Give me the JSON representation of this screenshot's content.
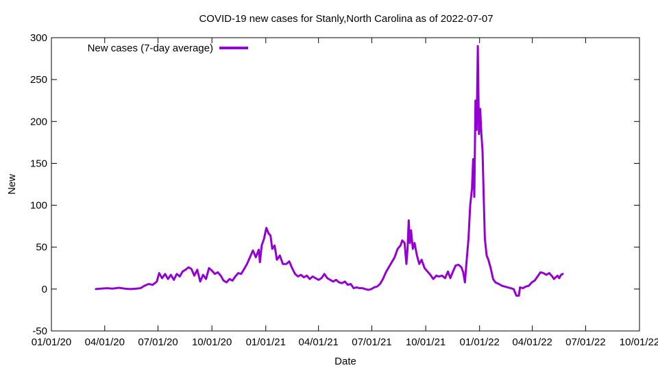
{
  "chart_data": {
    "type": "line",
    "title": "COVID-19 new cases for Stanly,North Carolina as of 2022-07-07",
    "xlabel": "Date",
    "ylabel": "New",
    "xlim": [
      "2020-01-01",
      "2022-10-01"
    ],
    "ylim": [
      -50,
      300
    ],
    "x_ticks": [
      {
        "date": "2020-01-01",
        "label": "01/01/20"
      },
      {
        "date": "2020-04-01",
        "label": "04/01/20"
      },
      {
        "date": "2020-07-01",
        "label": "07/01/20"
      },
      {
        "date": "2020-10-01",
        "label": "10/01/20"
      },
      {
        "date": "2021-01-01",
        "label": "01/01/21"
      },
      {
        "date": "2021-04-01",
        "label": "04/01/21"
      },
      {
        "date": "2021-07-01",
        "label": "07/01/21"
      },
      {
        "date": "2021-10-01",
        "label": "10/01/21"
      },
      {
        "date": "2022-01-01",
        "label": "01/01/22"
      },
      {
        "date": "2022-04-01",
        "label": "04/01/22"
      },
      {
        "date": "2022-07-01",
        "label": "07/01/22"
      },
      {
        "date": "2022-10-01",
        "label": "10/01/22"
      }
    ],
    "y_ticks": [
      -50,
      0,
      50,
      100,
      150,
      200,
      250,
      300
    ],
    "grid": false,
    "legend_position": "top-left",
    "series": [
      {
        "name": "New cases (7-day average)",
        "color": "#9400d3",
        "points": [
          [
            "2020-03-17",
            0
          ],
          [
            "2020-03-25",
            0.5
          ],
          [
            "2020-04-05",
            1
          ],
          [
            "2020-04-15",
            0.5
          ],
          [
            "2020-04-25",
            1.5
          ],
          [
            "2020-05-05",
            0.5
          ],
          [
            "2020-05-15",
            0
          ],
          [
            "2020-05-25",
            0.5
          ],
          [
            "2020-06-01",
            1
          ],
          [
            "2020-06-08",
            4
          ],
          [
            "2020-06-15",
            6
          ],
          [
            "2020-06-22",
            5
          ],
          [
            "2020-06-29",
            9
          ],
          [
            "2020-07-03",
            19
          ],
          [
            "2020-07-08",
            13
          ],
          [
            "2020-07-13",
            18
          ],
          [
            "2020-07-18",
            12
          ],
          [
            "2020-07-23",
            17
          ],
          [
            "2020-07-28",
            11
          ],
          [
            "2020-08-02",
            18
          ],
          [
            "2020-08-07",
            15
          ],
          [
            "2020-08-12",
            21
          ],
          [
            "2020-08-17",
            23
          ],
          [
            "2020-08-22",
            26
          ],
          [
            "2020-08-27",
            24
          ],
          [
            "2020-09-01",
            16
          ],
          [
            "2020-09-06",
            23
          ],
          [
            "2020-09-11",
            9
          ],
          [
            "2020-09-16",
            17
          ],
          [
            "2020-09-21",
            12
          ],
          [
            "2020-09-26",
            25
          ],
          [
            "2020-10-01",
            22
          ],
          [
            "2020-10-06",
            18
          ],
          [
            "2020-10-11",
            20
          ],
          [
            "2020-10-16",
            16
          ],
          [
            "2020-10-21",
            10
          ],
          [
            "2020-10-26",
            8
          ],
          [
            "2020-10-31",
            12
          ],
          [
            "2020-11-05",
            10
          ],
          [
            "2020-11-10",
            15
          ],
          [
            "2020-11-15",
            19
          ],
          [
            "2020-11-20",
            18
          ],
          [
            "2020-11-25",
            24
          ],
          [
            "2020-11-30",
            30
          ],
          [
            "2020-12-05",
            38
          ],
          [
            "2020-12-10",
            46
          ],
          [
            "2020-12-15",
            38
          ],
          [
            "2020-12-20",
            47
          ],
          [
            "2020-12-22",
            32
          ],
          [
            "2020-12-25",
            52
          ],
          [
            "2020-12-29",
            60
          ],
          [
            "2021-01-02",
            73
          ],
          [
            "2021-01-06",
            66
          ],
          [
            "2021-01-09",
            64
          ],
          [
            "2021-01-12",
            48
          ],
          [
            "2021-01-16",
            52
          ],
          [
            "2021-01-20",
            35
          ],
          [
            "2021-01-25",
            40
          ],
          [
            "2021-01-30",
            30
          ],
          [
            "2021-02-05",
            30
          ],
          [
            "2021-02-10",
            33
          ],
          [
            "2021-02-15",
            25
          ],
          [
            "2021-02-20",
            18
          ],
          [
            "2021-02-25",
            15
          ],
          [
            "2021-03-02",
            17
          ],
          [
            "2021-03-07",
            14
          ],
          [
            "2021-03-12",
            16
          ],
          [
            "2021-03-17",
            12
          ],
          [
            "2021-03-22",
            15
          ],
          [
            "2021-03-27",
            13
          ],
          [
            "2021-04-01",
            11
          ],
          [
            "2021-04-06",
            13
          ],
          [
            "2021-04-11",
            18
          ],
          [
            "2021-04-16",
            13
          ],
          [
            "2021-04-21",
            11
          ],
          [
            "2021-04-26",
            9
          ],
          [
            "2021-05-01",
            11
          ],
          [
            "2021-05-06",
            8
          ],
          [
            "2021-05-11",
            7
          ],
          [
            "2021-05-16",
            9
          ],
          [
            "2021-05-21",
            5
          ],
          [
            "2021-05-26",
            6
          ],
          [
            "2021-05-31",
            1
          ],
          [
            "2021-06-05",
            2
          ],
          [
            "2021-06-10",
            1
          ],
          [
            "2021-06-15",
            1
          ],
          [
            "2021-06-20",
            0
          ],
          [
            "2021-06-25",
            -1
          ],
          [
            "2021-06-30",
            0
          ],
          [
            "2021-07-05",
            2
          ],
          [
            "2021-07-10",
            3
          ],
          [
            "2021-07-15",
            6
          ],
          [
            "2021-07-20",
            12
          ],
          [
            "2021-07-25",
            20
          ],
          [
            "2021-07-30",
            26
          ],
          [
            "2021-08-04",
            32
          ],
          [
            "2021-08-09",
            38
          ],
          [
            "2021-08-14",
            48
          ],
          [
            "2021-08-19",
            52
          ],
          [
            "2021-08-22",
            58
          ],
          [
            "2021-08-26",
            55
          ],
          [
            "2021-08-29",
            30
          ],
          [
            "2021-08-31",
            48
          ],
          [
            "2021-09-02",
            82
          ],
          [
            "2021-09-04",
            55
          ],
          [
            "2021-09-06",
            70
          ],
          [
            "2021-09-09",
            48
          ],
          [
            "2021-09-12",
            55
          ],
          [
            "2021-09-16",
            40
          ],
          [
            "2021-09-20",
            30
          ],
          [
            "2021-09-24",
            35
          ],
          [
            "2021-09-29",
            25
          ],
          [
            "2021-10-04",
            21
          ],
          [
            "2021-10-09",
            17
          ],
          [
            "2021-10-14",
            12
          ],
          [
            "2021-10-19",
            16
          ],
          [
            "2021-10-24",
            15
          ],
          [
            "2021-10-29",
            16
          ],
          [
            "2021-11-03",
            13
          ],
          [
            "2021-11-08",
            21
          ],
          [
            "2021-11-12",
            13
          ],
          [
            "2021-11-16",
            20
          ],
          [
            "2021-11-21",
            28
          ],
          [
            "2021-11-26",
            29
          ],
          [
            "2021-12-01",
            26
          ],
          [
            "2021-12-04",
            20
          ],
          [
            "2021-12-07",
            8
          ],
          [
            "2021-12-10",
            35
          ],
          [
            "2021-12-13",
            60
          ],
          [
            "2021-12-16",
            100
          ],
          [
            "2021-12-19",
            120
          ],
          [
            "2021-12-21",
            155
          ],
          [
            "2021-12-23",
            110
          ],
          [
            "2021-12-25",
            225
          ],
          [
            "2021-12-27",
            190
          ],
          [
            "2021-12-29",
            290
          ],
          [
            "2021-12-31",
            185
          ],
          [
            "2022-01-02",
            215
          ],
          [
            "2022-01-04",
            185
          ],
          [
            "2022-01-06",
            165
          ],
          [
            "2022-01-08",
            110
          ],
          [
            "2022-01-10",
            60
          ],
          [
            "2022-01-13",
            40
          ],
          [
            "2022-01-16",
            35
          ],
          [
            "2022-01-20",
            25
          ],
          [
            "2022-01-24",
            12
          ],
          [
            "2022-01-28",
            8
          ],
          [
            "2022-02-03",
            6
          ],
          [
            "2022-02-08",
            4
          ],
          [
            "2022-02-13",
            3
          ],
          [
            "2022-02-18",
            2
          ],
          [
            "2022-02-23",
            1
          ],
          [
            "2022-02-28",
            0
          ],
          [
            "2022-03-05",
            -8
          ],
          [
            "2022-03-09",
            -8
          ],
          [
            "2022-03-11",
            2
          ],
          [
            "2022-03-16",
            1
          ],
          [
            "2022-03-21",
            3
          ],
          [
            "2022-03-26",
            4
          ],
          [
            "2022-03-31",
            8
          ],
          [
            "2022-04-05",
            10
          ],
          [
            "2022-04-10",
            15
          ],
          [
            "2022-04-15",
            20
          ],
          [
            "2022-04-20",
            19
          ],
          [
            "2022-04-25",
            17
          ],
          [
            "2022-04-30",
            19
          ],
          [
            "2022-05-05",
            15
          ],
          [
            "2022-05-08",
            12
          ],
          [
            "2022-05-11",
            14
          ],
          [
            "2022-05-14",
            16
          ],
          [
            "2022-05-17",
            13
          ],
          [
            "2022-05-20",
            17
          ],
          [
            "2022-05-23",
            18
          ]
        ]
      }
    ]
  }
}
